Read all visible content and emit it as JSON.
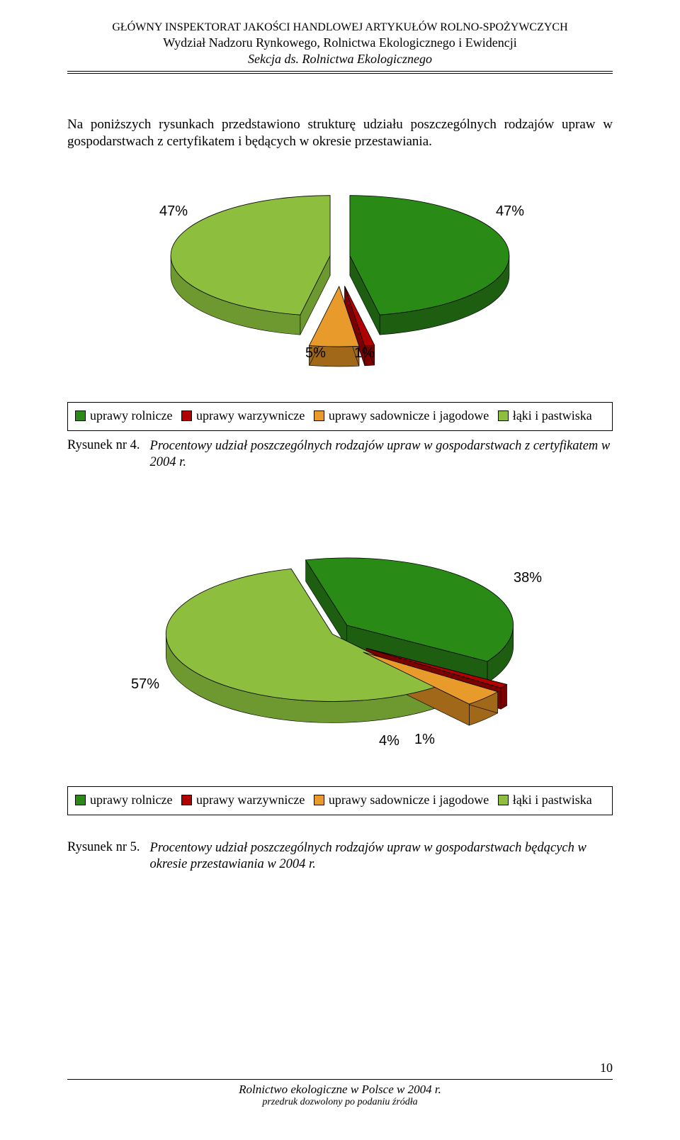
{
  "header": {
    "line1": "GŁÓWNY INSPEKTORAT JAKOŚCI HANDLOWEJ ARTYKUŁÓW ROLNO-SPOŻYWCZYCH",
    "line2": "Wydział Nadzoru Rynkowego, Rolnictwa Ekologicznego i Ewidencji",
    "line3": "Sekcja ds. Rolnictwa Ekologicznego"
  },
  "intro": "Na poniższych rysunkach przedstawiono strukturę udziału poszczególnych rodzajów upraw w gospodarstwach z certyfikatem i będących w okresie przestawiania.",
  "chart1": {
    "type": "pie",
    "slices": [
      {
        "label": "47%",
        "value": 47,
        "color_top": "#2a8a16",
        "color_side": "#1d5e10",
        "name": "uprawy rolnicze"
      },
      {
        "label": "1%",
        "value": 1,
        "color_top": "#b00000",
        "color_side": "#7a0000",
        "name": "uprawy warzywnicze"
      },
      {
        "label": "5%",
        "value": 5,
        "color_top": "#e89a2a",
        "color_side": "#a06818",
        "name": "uprawy sadownicze i jagodowe"
      },
      {
        "label": "47%",
        "value": 47,
        "color_top": "#8ebe3e",
        "color_side": "#6d9930",
        "name": "łąki i pastwiska"
      }
    ],
    "background_color": "#ffffff",
    "label_fontsize": 20,
    "caption_label": "Rysunek nr 4.",
    "caption_text": "Procentowy udział poszczególnych rodzajów upraw w gospodarstwach z certyfikatem w 2004 r."
  },
  "chart2": {
    "type": "pie",
    "slices": [
      {
        "label": "38%",
        "value": 38,
        "color_top": "#2a8a16",
        "color_side": "#1d5e10",
        "name": "uprawy rolnicze"
      },
      {
        "label": "1%",
        "value": 1,
        "color_top": "#b00000",
        "color_side": "#7a0000",
        "name": "uprawy warzywnicze"
      },
      {
        "label": "4%",
        "value": 4,
        "color_top": "#e89a2a",
        "color_side": "#a06818",
        "name": "uprawy sadownicze i jagodowe"
      },
      {
        "label": "57%",
        "value": 57,
        "color_top": "#8ebe3e",
        "color_side": "#6d9930",
        "name": "łąki i pastwiska"
      }
    ],
    "background_color": "#ffffff",
    "label_fontsize": 20,
    "caption_label": "Rysunek nr 5.",
    "caption_text": "Procentowy udział poszczególnych rodzajów upraw w gospodarstwach  będących w okresie przestawiania w 2004 r."
  },
  "legend": {
    "items": [
      {
        "swatch": "#2a8a16",
        "text": "uprawy rolnicze"
      },
      {
        "swatch": "#b00000",
        "text": "uprawy warzywnicze"
      },
      {
        "swatch": "#e89a2a",
        "text": "uprawy sadownicze i jagodowe"
      },
      {
        "swatch": "#8ebe3e",
        "text": "łąki i pastwiska"
      }
    ],
    "fontsize": 18
  },
  "footer": {
    "line1": "Rolnictwo ekologiczne w Polsce w 2004 r.",
    "line2": "przedruk dozwolony po podaniu źródła",
    "page": "10"
  }
}
